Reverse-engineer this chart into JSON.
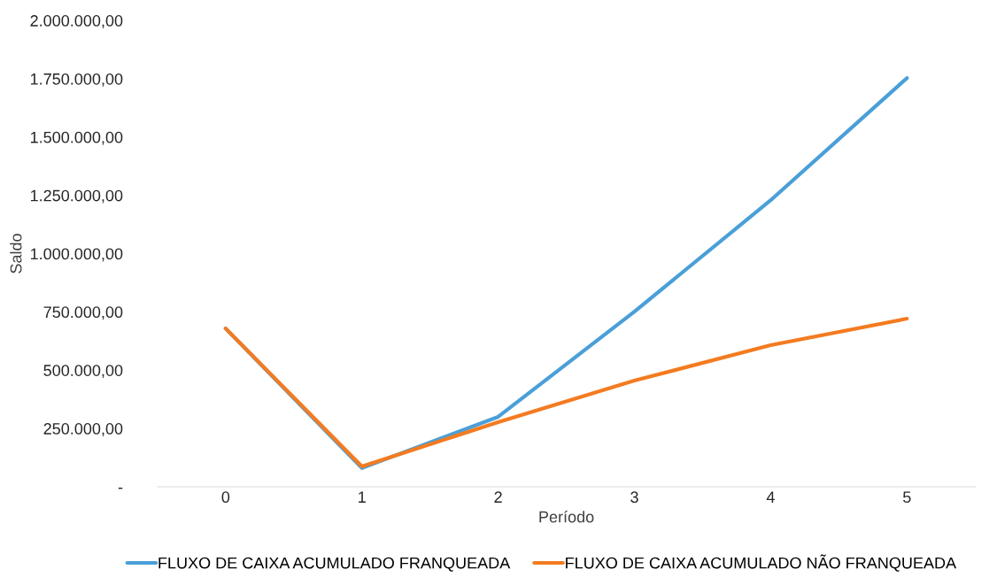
{
  "chart_data": {
    "type": "line",
    "xlabel": "Período",
    "ylabel": "Saldo",
    "categories": [
      "0",
      "1",
      "2",
      "3",
      "4",
      "5"
    ],
    "series": [
      {
        "name": "FLUXO DE CAIXA ACUMULADO FRANQUEADA",
        "color": "#4a9fd8",
        "values": [
          679000,
          80000,
          300000,
          751000,
          1229000,
          1753000
        ]
      },
      {
        "name": "FLUXO DE CAIXA ACUMULADO NÃO FRANQUEADA",
        "color": "#f47b20",
        "values": [
          679000,
          87000,
          277000,
          455000,
          607000,
          721000
        ]
      }
    ],
    "ylim": [
      0,
      2000000
    ],
    "yticks": [
      {
        "value": 0,
        "label": "-"
      },
      {
        "value": 250000,
        "label": "250.000,00"
      },
      {
        "value": 500000,
        "label": "500.000,00"
      },
      {
        "value": 750000,
        "label": "750.000,00"
      },
      {
        "value": 1000000,
        "label": "1.000.000,00"
      },
      {
        "value": 1250000,
        "label": "1.250.000,00"
      },
      {
        "value": 1500000,
        "label": "1.500.000,00"
      },
      {
        "value": 1750000,
        "label": "1.750.000,00"
      },
      {
        "value": 2000000,
        "label": "2.000.000,00"
      }
    ],
    "grid": false,
    "legend": "bottom",
    "marker": "none",
    "line_style": "solid"
  }
}
